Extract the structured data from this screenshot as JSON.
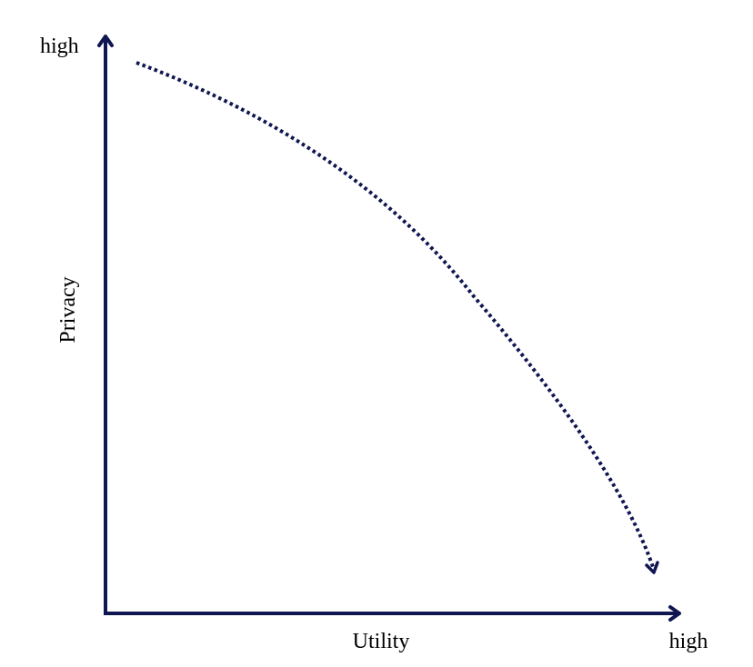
{
  "diagram": {
    "x_axis": {
      "label": "Utility",
      "end_label": "high"
    },
    "y_axis": {
      "label": "Privacy",
      "end_label": "high"
    },
    "tradeoff_curve": {
      "style": "dotted",
      "direction": "from high privacy toward high utility"
    },
    "colors": {
      "axis": "#0f1650",
      "curve": "#0f1650",
      "text": "#000000"
    }
  }
}
